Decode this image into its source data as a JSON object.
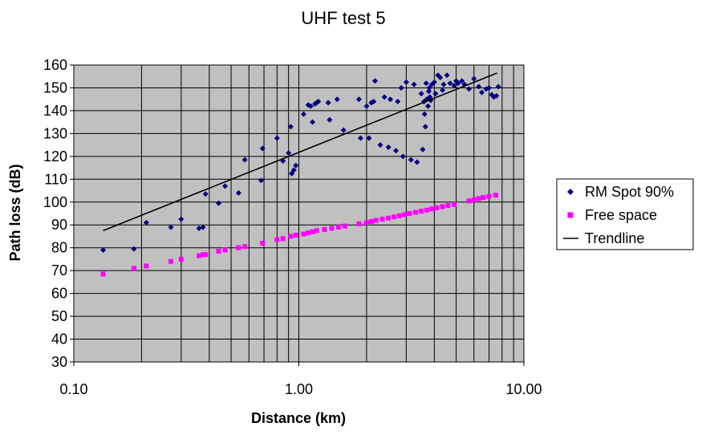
{
  "chart_data": {
    "type": "scatter",
    "title": "UHF test 5",
    "xlabel": "Distance (km)",
    "ylabel": "Path loss (dB)",
    "x_scale": "log",
    "xlim": [
      0.1,
      10
    ],
    "ylim": [
      30,
      160
    ],
    "x_ticks": [
      "0.10",
      "1.00",
      "10.00"
    ],
    "y_ticks": [
      "30",
      "40",
      "50",
      "60",
      "70",
      "80",
      "90",
      "100",
      "110",
      "120",
      "130",
      "140",
      "150",
      "160"
    ],
    "y_tick_values": [
      30,
      40,
      50,
      60,
      70,
      80,
      90,
      100,
      110,
      120,
      130,
      140,
      150,
      160
    ],
    "x_tick_values": [
      0.1,
      1,
      10
    ],
    "grid": true,
    "legend_position": "right",
    "plot_background": "#c0c0c0",
    "series": [
      {
        "name": "RM Spot 90%",
        "kind": "points",
        "marker": "diamond",
        "color": "#000080",
        "points": [
          [
            0.135,
            79
          ],
          [
            0.185,
            79.5
          ],
          [
            0.21,
            91
          ],
          [
            0.27,
            89
          ],
          [
            0.3,
            92.5
          ],
          [
            0.36,
            88.5
          ],
          [
            0.375,
            89
          ],
          [
            0.385,
            103.5
          ],
          [
            0.44,
            99.5
          ],
          [
            0.47,
            107
          ],
          [
            0.54,
            104
          ],
          [
            0.575,
            118.5
          ],
          [
            0.68,
            109.5
          ],
          [
            0.69,
            123.5
          ],
          [
            0.8,
            128
          ],
          [
            0.85,
            118
          ],
          [
            0.9,
            121.5
          ],
          [
            0.92,
            133
          ],
          [
            0.93,
            112.5
          ],
          [
            0.95,
            114
          ],
          [
            0.97,
            116
          ],
          [
            1.05,
            138.5
          ],
          [
            1.1,
            142.5
          ],
          [
            1.13,
            142
          ],
          [
            1.15,
            135
          ],
          [
            1.18,
            143
          ],
          [
            1.2,
            143.5
          ],
          [
            1.22,
            144
          ],
          [
            1.35,
            143.5
          ],
          [
            1.37,
            136
          ],
          [
            1.48,
            145
          ],
          [
            1.58,
            131.5
          ],
          [
            1.85,
            145
          ],
          [
            1.88,
            128
          ],
          [
            2.0,
            142
          ],
          [
            2.05,
            128
          ],
          [
            2.1,
            143.5
          ],
          [
            2.15,
            144
          ],
          [
            2.18,
            153
          ],
          [
            2.3,
            125
          ],
          [
            2.4,
            146
          ],
          [
            2.5,
            124
          ],
          [
            2.55,
            145
          ],
          [
            2.7,
            122.5
          ],
          [
            2.75,
            144
          ],
          [
            2.85,
            150
          ],
          [
            2.9,
            120
          ],
          [
            3.0,
            152.5
          ],
          [
            3.15,
            118.5
          ],
          [
            3.25,
            151.5
          ],
          [
            3.35,
            117.5
          ],
          [
            3.5,
            147.5
          ],
          [
            3.55,
            123
          ],
          [
            3.6,
            144
          ],
          [
            3.62,
            138.5
          ],
          [
            3.65,
            133
          ],
          [
            3.68,
            152
          ],
          [
            3.7,
            145
          ],
          [
            3.75,
            142
          ],
          [
            3.78,
            148.5
          ],
          [
            3.8,
            150
          ],
          [
            3.82,
            146
          ],
          [
            3.85,
            144.5
          ],
          [
            3.9,
            151.5
          ],
          [
            4.0,
            152.5
          ],
          [
            4.05,
            147.5
          ],
          [
            4.15,
            155.5
          ],
          [
            4.25,
            154.5
          ],
          [
            4.35,
            149
          ],
          [
            4.4,
            151.5
          ],
          [
            4.55,
            155.5
          ],
          [
            4.7,
            152
          ],
          [
            4.9,
            151
          ],
          [
            5.0,
            153
          ],
          [
            5.1,
            152
          ],
          [
            5.3,
            153
          ],
          [
            5.45,
            151.5
          ],
          [
            5.7,
            149.5
          ],
          [
            6.0,
            154
          ],
          [
            6.3,
            150.5
          ],
          [
            6.5,
            148
          ],
          [
            6.8,
            149.5
          ],
          [
            7.0,
            150
          ],
          [
            7.2,
            147
          ],
          [
            7.35,
            146
          ],
          [
            7.55,
            146.5
          ],
          [
            7.7,
            150.5
          ]
        ]
      },
      {
        "name": "Free space",
        "kind": "points",
        "marker": "square",
        "color": "#ff00ff",
        "points": [
          [
            0.135,
            68.5
          ],
          [
            0.185,
            71
          ],
          [
            0.21,
            72
          ],
          [
            0.27,
            74
          ],
          [
            0.3,
            75
          ],
          [
            0.36,
            76.5
          ],
          [
            0.375,
            77
          ],
          [
            0.385,
            77
          ],
          [
            0.44,
            78.5
          ],
          [
            0.47,
            79
          ],
          [
            0.54,
            80
          ],
          [
            0.575,
            80.5
          ],
          [
            0.69,
            82
          ],
          [
            0.8,
            83.5
          ],
          [
            0.85,
            84
          ],
          [
            0.92,
            85
          ],
          [
            0.97,
            85.5
          ],
          [
            1.05,
            86
          ],
          [
            1.1,
            86.5
          ],
          [
            1.15,
            87
          ],
          [
            1.2,
            87.5
          ],
          [
            1.3,
            88
          ],
          [
            1.4,
            88.5
          ],
          [
            1.5,
            89
          ],
          [
            1.6,
            89.5
          ],
          [
            1.85,
            90.5
          ],
          [
            2.0,
            91
          ],
          [
            2.1,
            91.5
          ],
          [
            2.2,
            92
          ],
          [
            2.35,
            92.5
          ],
          [
            2.5,
            93
          ],
          [
            2.65,
            93.5
          ],
          [
            2.8,
            94
          ],
          [
            2.95,
            94.5
          ],
          [
            3.1,
            95
          ],
          [
            3.3,
            95.5
          ],
          [
            3.5,
            96
          ],
          [
            3.7,
            96.5
          ],
          [
            3.9,
            97
          ],
          [
            4.1,
            97.5
          ],
          [
            4.35,
            98
          ],
          [
            4.6,
            98.5
          ],
          [
            4.9,
            99
          ],
          [
            5.7,
            100.5
          ],
          [
            6.0,
            101
          ],
          [
            6.3,
            101.5
          ],
          [
            6.6,
            102
          ],
          [
            7.0,
            102.5
          ],
          [
            7.5,
            103
          ]
        ]
      },
      {
        "name": "Trendline",
        "kind": "line",
        "color": "#000000",
        "points": [
          [
            0.135,
            87.5
          ],
          [
            7.6,
            156.5
          ]
        ]
      }
    ]
  }
}
